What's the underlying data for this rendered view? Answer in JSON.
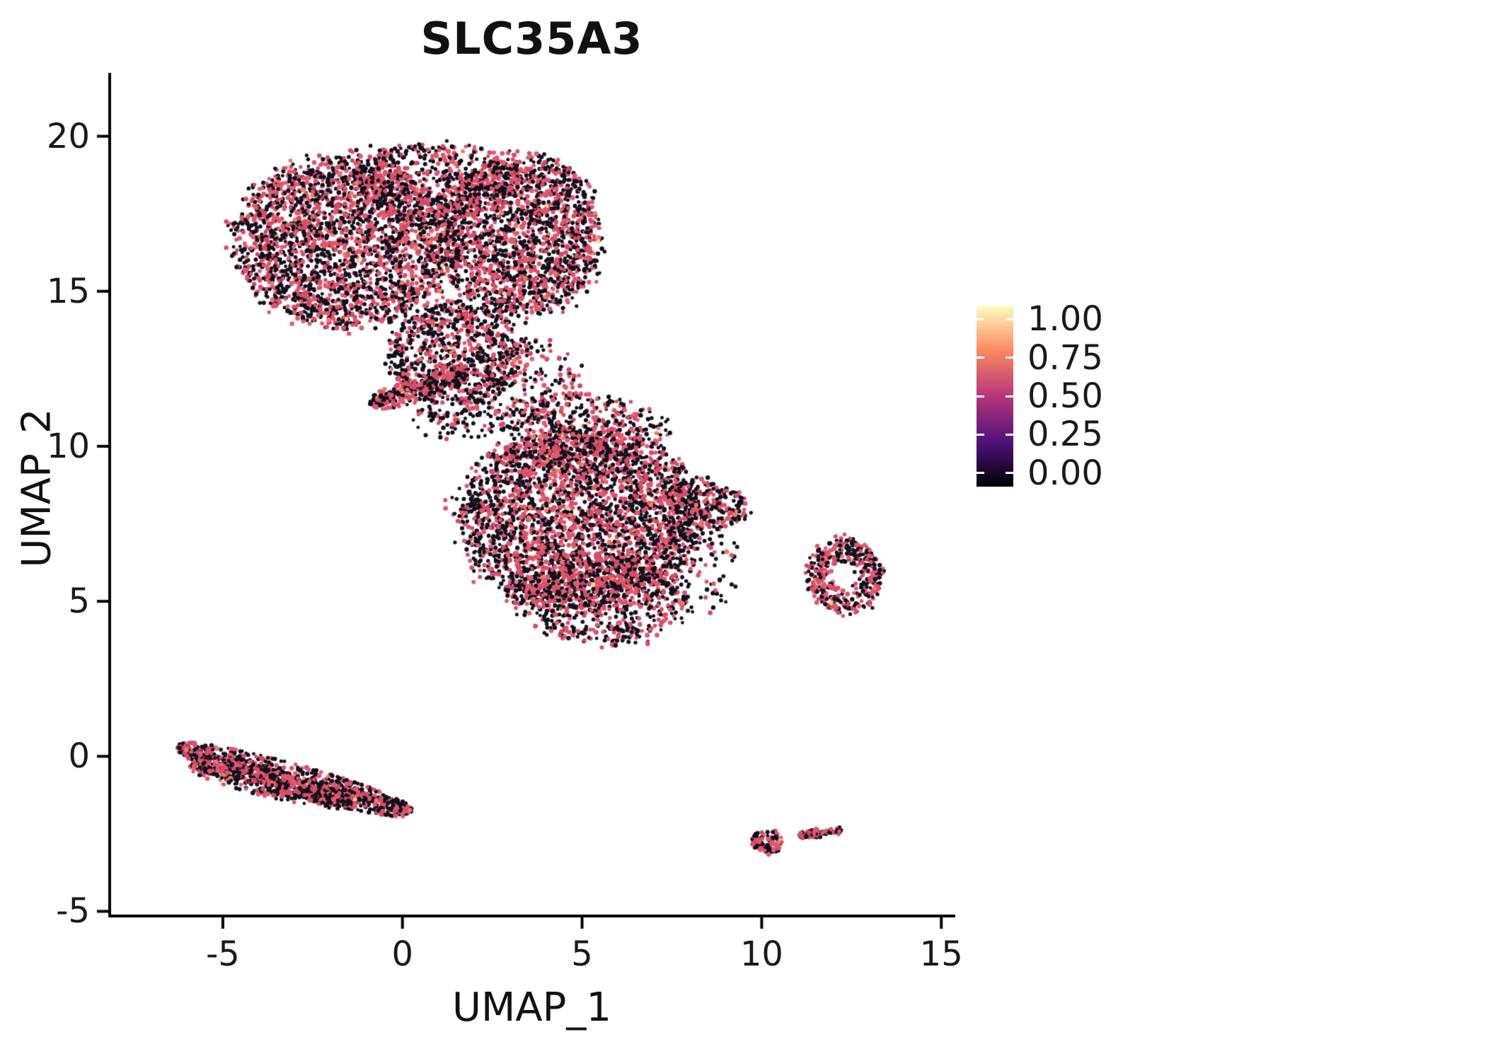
{
  "page": {
    "background": "#ffffff"
  },
  "chart_data": {
    "type": "scatter",
    "title": "SLC35A3",
    "xlabel": "UMAP_1",
    "ylabel": "UMAP_2",
    "xlim": [
      -8.15,
      15.35
    ],
    "ylim": [
      -5.15,
      22.0
    ],
    "xticks": [
      -5,
      0,
      5,
      10,
      15
    ],
    "yticks": [
      -5,
      0,
      5,
      10,
      15,
      20
    ],
    "grid": false,
    "axis_color": "#000000",
    "legend": {
      "position": "right",
      "labels": [
        "1.00",
        "0.75",
        "0.50",
        "0.25",
        "0.00"
      ],
      "gradient_bottom_to_top": [
        "#000004",
        "#51127c",
        "#b63679",
        "#fb8861",
        "#fcfdbf"
      ]
    },
    "point_colors": {
      "not_expressed": "#12101e",
      "expressed": [
        "#d94f63",
        "#e05a6e",
        "#d7496a",
        "#e4566b"
      ],
      "mid_high": "#ef7d62",
      "high": "#fbd08f"
    },
    "clusters": [
      {
        "name": "top-left-lobe",
        "shape": "ellipse",
        "cx": -1.6,
        "cy": 16.6,
        "rx": 3.05,
        "ry": 2.75,
        "rot": -8,
        "n": 2500,
        "frac": 0.46
      },
      {
        "name": "top-right-lobe",
        "shape": "ellipse",
        "cx": 3.3,
        "cy": 16.8,
        "rx": 2.25,
        "ry": 2.6,
        "rot": 0,
        "n": 1850,
        "frac": 0.44
      },
      {
        "name": "top-cap",
        "shape": "ellipse",
        "cx": 0.9,
        "cy": 18.5,
        "rx": 2.3,
        "ry": 1.35,
        "rot": 0,
        "n": 520,
        "frac": 0.45
      },
      {
        "name": "top-tongue",
        "shape": "ellipse",
        "cx": 1.5,
        "cy": 13.0,
        "rx": 1.9,
        "ry": 1.7,
        "rot": 0,
        "n": 780,
        "frac": 0.42
      },
      {
        "name": "neck-strip",
        "shape": "band",
        "x1": -0.9,
        "y1": 11.35,
        "x2": 1.8,
        "y2": 12.4,
        "w": 0.8,
        "n": 330,
        "frac": 0.45
      },
      {
        "name": "neck-sparse",
        "shape": "ellipse",
        "cx": 1.6,
        "cy": 10.9,
        "rx": 1.4,
        "ry": 0.7,
        "rot": 0,
        "n": 90,
        "frac": 0.3
      },
      {
        "name": "bridge-sparse",
        "shape": "ellipse",
        "cx": 3.2,
        "cy": 12.1,
        "rx": 1.7,
        "ry": 1.5,
        "rot": 0,
        "n": 220,
        "frac": 0.38
      },
      {
        "name": "center-main",
        "shape": "ellipse",
        "cx": 4.9,
        "cy": 7.7,
        "rx": 3.35,
        "ry": 2.95,
        "rot": 0,
        "n": 3100,
        "frac": 0.46
      },
      {
        "name": "center-bottom",
        "shape": "ellipse",
        "cx": 5.6,
        "cy": 5.1,
        "rx": 2.3,
        "ry": 1.5,
        "rot": 0,
        "n": 650,
        "frac": 0.46
      },
      {
        "name": "center-top",
        "shape": "ellipse",
        "cx": 5.0,
        "cy": 10.4,
        "rx": 2.3,
        "ry": 1.3,
        "rot": 0,
        "n": 470,
        "frac": 0.44
      },
      {
        "name": "center-right-tip",
        "shape": "ellipse",
        "cx": 8.5,
        "cy": 8.1,
        "rx": 1.15,
        "ry": 0.75,
        "rot": -15,
        "n": 240,
        "frac": 0.46
      },
      {
        "name": "center-fringe",
        "shape": "ellipse",
        "cx": 7.9,
        "cy": 6.2,
        "rx": 1.5,
        "ry": 1.7,
        "rot": 0,
        "n": 140,
        "frac": 0.35
      },
      {
        "name": "stray-below-center",
        "shape": "ellipse",
        "cx": 6.85,
        "cy": 3.7,
        "rx": 0.12,
        "ry": 0.1,
        "rot": 0,
        "n": 3,
        "frac": 0.7
      },
      {
        "name": "bottom-left-streak-a",
        "shape": "band",
        "x1": -6.25,
        "y1": 0.3,
        "x2": 0.25,
        "y2": -1.8,
        "w": 0.95,
        "n": 950,
        "frac": 0.44
      },
      {
        "name": "bottom-left-streak-b",
        "shape": "band",
        "x1": -5.9,
        "y1": -0.3,
        "x2": -1.3,
        "y2": -1.55,
        "w": 0.8,
        "n": 430,
        "frac": 0.44
      },
      {
        "name": "right-ring",
        "shape": "ellipse",
        "cx": 12.3,
        "cy": 5.8,
        "rx": 1.05,
        "ry": 1.2,
        "rot": 10,
        "hole": 0.28,
        "n": 400,
        "frac": 0.5
      },
      {
        "name": "tiny-bottom-a",
        "shape": "ellipse",
        "cx": 10.15,
        "cy": -2.75,
        "rx": 0.45,
        "ry": 0.38,
        "rot": 0,
        "n": 95,
        "frac": 0.5
      },
      {
        "name": "tiny-bottom-b",
        "shape": "band",
        "x1": 11.05,
        "y1": -2.55,
        "x2": 11.85,
        "y2": -2.45,
        "w": 0.3,
        "n": 65,
        "frac": 0.5
      },
      {
        "name": "tiny-bottom-c",
        "shape": "ellipse",
        "cx": 12.05,
        "cy": -2.4,
        "rx": 0.18,
        "ry": 0.12,
        "rot": 0,
        "n": 18,
        "frac": 0.5
      }
    ]
  }
}
